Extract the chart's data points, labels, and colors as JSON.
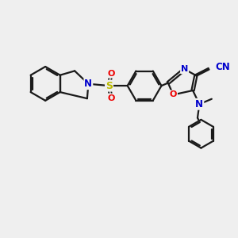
{
  "background_color": "#efefef",
  "bond_color": "#1a1a1a",
  "bond_width": 1.6,
  "figsize": [
    3.0,
    3.0
  ],
  "dpi": 100,
  "xlim": [
    0,
    10
  ],
  "ylim": [
    0,
    10
  ],
  "N_color": "#0000cc",
  "O_color": "#ee0000",
  "S_color": "#bbbb00",
  "C_color": "#1a1a1a"
}
